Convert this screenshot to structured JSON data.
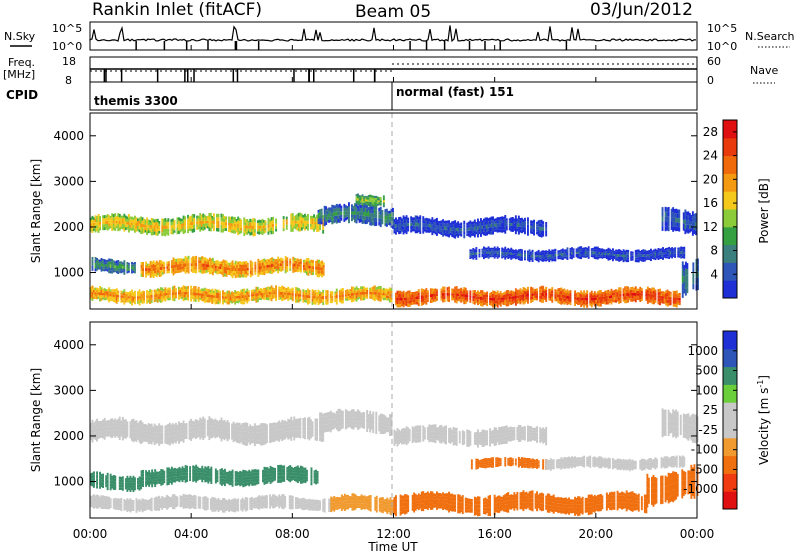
{
  "header": {
    "station": "Rankin Inlet (fitACF)",
    "beam": "Beam 05",
    "date": "03/Jun/2012"
  },
  "side_labels": {
    "nsky": "N.Sky",
    "nsearch": "N.Search",
    "freq": "Freq.",
    "mhz": "[MHz]",
    "nave": "Nave",
    "cpid": "CPID"
  },
  "noise_panel": {
    "ticks_left": [
      "10^5",
      "10^0"
    ],
    "ticks_right": [
      "10^5",
      "10^0"
    ]
  },
  "freq_panel": {
    "ticks_left": [
      "18",
      "8"
    ],
    "ticks_right": [
      "60",
      "0"
    ]
  },
  "cpid_panel": {
    "modes": [
      {
        "label": "themis 3300"
      },
      {
        "label": "normal (fast) 151"
      }
    ]
  },
  "colors": {
    "power_scale": [
      "#1f2fd6",
      "#2e55b8",
      "#3b7f7f",
      "#35a042",
      "#8ccc3a",
      "#f5c81c",
      "#f39a12",
      "#f06a0c",
      "#e83a0a",
      "#e01010"
    ],
    "velocity_scale": [
      "#e01010",
      "#f03a10",
      "#f07010",
      "#f09a30",
      "#c8c8c8",
      "#c8c8c8",
      "#6bcf3b",
      "#3a8f6a",
      "#2e55b8",
      "#1f2fd6"
    ]
  },
  "chart_data": [
    {
      "type": "heatmap",
      "panel": "power",
      "title": "Rankin Inlet (fitACF)",
      "xlabel": "Time UT",
      "ylabel": "Slant Range [km]",
      "x_ticks": [
        "00:00",
        "04:00",
        "08:00",
        "12:00",
        "16:00",
        "20:00",
        "00:00"
      ],
      "y_ticks": [
        1000,
        2000,
        3000,
        4000
      ],
      "ylim": [
        200,
        4500
      ],
      "xlim_hours": [
        0,
        24
      ],
      "colorbar_label": "Power [dB]",
      "colorbar_ticks": [
        4,
        8,
        12,
        16,
        20,
        24,
        28
      ],
      "colorbar_range": [
        0,
        30
      ],
      "bands": [
        {
          "t0": 0.0,
          "t1": 9.2,
          "r_center": 2050,
          "r_width": 380,
          "value": 18
        },
        {
          "t0": 2.0,
          "t1": 9.2,
          "r_center": 1120,
          "r_width": 360,
          "value": 22
        },
        {
          "t0": 0.0,
          "t1": 1.8,
          "r_center": 1150,
          "r_width": 300,
          "value": 10
        },
        {
          "t0": 9.0,
          "t1": 12.0,
          "r_center": 2250,
          "r_width": 420,
          "value": 9
        },
        {
          "t0": 10.5,
          "t1": 11.6,
          "r_center": 2600,
          "r_width": 250,
          "value": 14
        },
        {
          "t0": 12.0,
          "t1": 18.0,
          "r_center": 2000,
          "r_width": 380,
          "value": 5
        },
        {
          "t0": 15.0,
          "t1": 23.5,
          "r_center": 1400,
          "r_width": 260,
          "value": 5
        },
        {
          "t0": 22.6,
          "t1": 24.0,
          "r_center": 2100,
          "r_width": 500,
          "value": 6
        },
        {
          "t0": 0.0,
          "t1": 12.0,
          "r_center": 500,
          "r_width": 320,
          "value": 21
        },
        {
          "t0": 12.0,
          "t1": 23.3,
          "r_center": 470,
          "r_width": 350,
          "value": 26
        },
        {
          "t0": 23.4,
          "t1": 24.0,
          "r_center": 900,
          "r_width": 800,
          "value": 9
        }
      ]
    },
    {
      "type": "heatmap",
      "panel": "velocity",
      "xlabel": "Time UT",
      "ylabel": "Slant Range [km]",
      "x_ticks": [
        "00:00",
        "04:00",
        "08:00",
        "12:00",
        "16:00",
        "20:00",
        "00:00"
      ],
      "y_ticks": [
        1000,
        2000,
        3000,
        4000
      ],
      "ylim": [
        200,
        4500
      ],
      "xlim_hours": [
        0,
        24
      ],
      "colorbar_label": "Velocity [m s-1]",
      "colorbar_label_prefix": "Velocity [m s",
      "colorbar_label_exp": "-1",
      "colorbar_label_suffix": "]",
      "colorbar_ticks": [
        1000,
        500,
        100,
        25,
        -25,
        -100,
        -500,
        -1000
      ],
      "bands": [
        {
          "t0": 0.0,
          "t1": 9.2,
          "r_center": 2100,
          "r_width": 480,
          "value": 0
        },
        {
          "t0": 2.0,
          "t1": 9.0,
          "r_center": 1120,
          "r_width": 360,
          "value": 300
        },
        {
          "t0": 0.0,
          "t1": 2.0,
          "r_center": 1000,
          "r_width": 350,
          "value": 150
        },
        {
          "t0": 9.0,
          "t1": 12.0,
          "r_center": 2300,
          "r_width": 450,
          "value": 0
        },
        {
          "t0": 12.0,
          "t1": 18.0,
          "r_center": 2000,
          "r_width": 380,
          "value": 0
        },
        {
          "t0": 15.0,
          "t1": 18.0,
          "r_center": 1400,
          "r_width": 220,
          "value": -200
        },
        {
          "t0": 18.0,
          "t1": 23.5,
          "r_center": 1400,
          "r_width": 250,
          "value": 0
        },
        {
          "t0": 22.6,
          "t1": 24.0,
          "r_center": 2200,
          "r_width": 600,
          "value": 0
        },
        {
          "t0": 0.0,
          "t1": 9.5,
          "r_center": 520,
          "r_width": 300,
          "value": 0
        },
        {
          "t0": 9.5,
          "t1": 12.0,
          "r_center": 500,
          "r_width": 350,
          "value": -60
        },
        {
          "t0": 12.0,
          "t1": 22.0,
          "r_center": 520,
          "r_width": 420,
          "value": -150
        },
        {
          "t0": 22.0,
          "t1": 24.0,
          "r_center": 900,
          "r_width": 700,
          "value": -300
        }
      ]
    }
  ]
}
